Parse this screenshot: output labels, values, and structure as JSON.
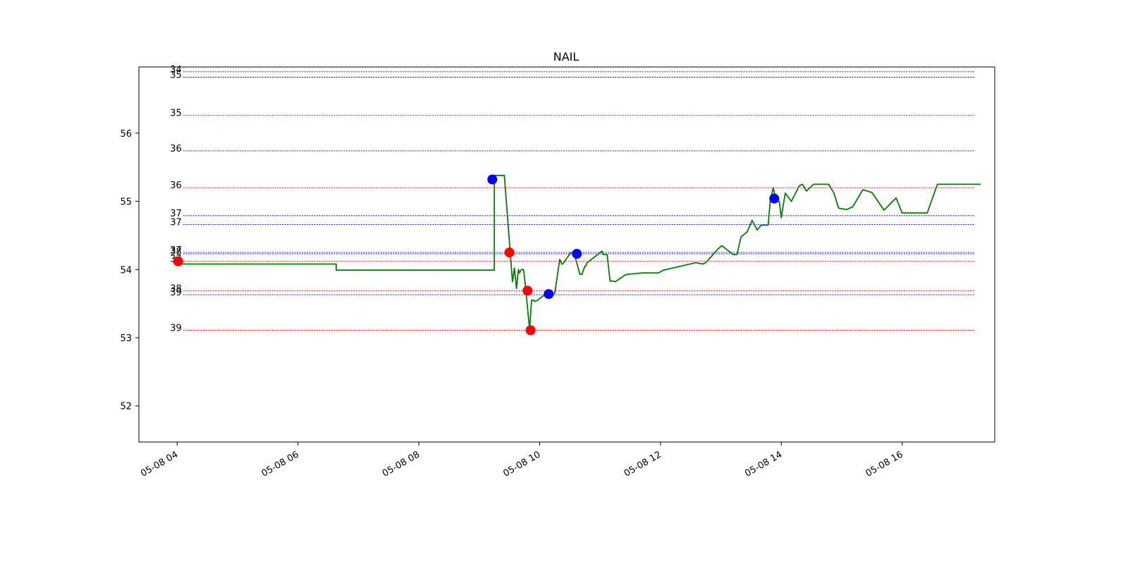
{
  "chart_data": {
    "type": "line",
    "title": "NAIL",
    "xlabel": "",
    "ylabel": "",
    "xlim": [
      "2024-05-08 03:22",
      "2024-05-08 17:32"
    ],
    "ylim": [
      51.47,
      56.97
    ],
    "grid": false,
    "x_ticks": [
      {
        "x": "2024-05-08 04:00",
        "label": "05-08 04"
      },
      {
        "x": "2024-05-08 06:00",
        "label": "05-08 06"
      },
      {
        "x": "2024-05-08 08:00",
        "label": "05-08 08"
      },
      {
        "x": "2024-05-08 10:00",
        "label": "05-08 10"
      },
      {
        "x": "2024-05-08 12:00",
        "label": "05-08 12"
      },
      {
        "x": "2024-05-08 14:00",
        "label": "05-08 14"
      },
      {
        "x": "2024-05-08 16:00",
        "label": "05-08 16"
      }
    ],
    "y_ticks": [
      52,
      53,
      54,
      55,
      56
    ],
    "series": [
      {
        "color": "#008000",
        "x": [
          "2024-05-08 04:00",
          "2024-05-08 06:38",
          "2024-05-08 06:38",
          "2024-05-08 09:15",
          "2024-05-08 09:15",
          "2024-05-08 09:25",
          "2024-05-08 09:33",
          "2024-05-08 09:35",
          "2024-05-08 09:37",
          "2024-05-08 09:39",
          "2024-05-08 09:40",
          "2024-05-08 09:42",
          "2024-05-08 09:44",
          "2024-05-08 09:46",
          "2024-05-08 09:50",
          "2024-05-08 09:52",
          "2024-05-08 09:54",
          "2024-05-08 09:55",
          "2024-05-08 09:58",
          "2024-05-08 10:05",
          "2024-05-08 10:07",
          "2024-05-08 10:15",
          "2024-05-08 10:20",
          "2024-05-08 10:22",
          "2024-05-08 10:23",
          "2024-05-08 10:31",
          "2024-05-08 10:34",
          "2024-05-08 10:40",
          "2024-05-08 10:42",
          "2024-05-08 10:45",
          "2024-05-08 10:46",
          "2024-05-08 10:47",
          "2024-05-08 10:56",
          "2024-05-08 11:02",
          "2024-05-08 11:03",
          "2024-05-08 11:07",
          "2024-05-08 11:10",
          "2024-05-08 11:13",
          "2024-05-08 11:15",
          "2024-05-08 11:25",
          "2024-05-08 11:27",
          "2024-05-08 11:42",
          "2024-05-08 11:47",
          "2024-05-08 11:58",
          "2024-05-08 12:03",
          "2024-05-08 12:35",
          "2024-05-08 12:42",
          "2024-05-08 12:45",
          "2024-05-08 12:57",
          "2024-05-08 13:01",
          "2024-05-08 13:12",
          "2024-05-08 13:16",
          "2024-05-08 13:20",
          "2024-05-08 13:26",
          "2024-05-08 13:31",
          "2024-05-08 13:36",
          "2024-05-08 13:40",
          "2024-05-08 13:47",
          "2024-05-08 13:49",
          "2024-05-08 13:52",
          "2024-05-08 13:55",
          "2024-05-08 13:58",
          "2024-05-08 14:00",
          "2024-05-08 14:02",
          "2024-05-08 14:04",
          "2024-05-08 14:10",
          "2024-05-08 14:18",
          "2024-05-08 14:21",
          "2024-05-08 14:25",
          "2024-05-08 14:32",
          "2024-05-08 14:38",
          "2024-05-08 14:43",
          "2024-05-08 14:47",
          "2024-05-08 14:52",
          "2024-05-08 14:57",
          "2024-05-08 15:05",
          "2024-05-08 15:11",
          "2024-05-08 15:21",
          "2024-05-08 15:30",
          "2024-05-08 15:42",
          "2024-05-08 15:54",
          "2024-05-08 16:00",
          "2024-05-08 16:08",
          "2024-05-08 16:13",
          "2024-05-08 16:25",
          "2024-05-08 16:35",
          "2024-05-08 16:45",
          "2024-05-08 16:52",
          "2024-05-08 17:05",
          "2024-05-08 17:18"
        ],
        "y": [
          54.08,
          54.08,
          53.99,
          53.99,
          55.38,
          55.38,
          53.82,
          54.02,
          53.72,
          54.0,
          53.95,
          54.0,
          54.0,
          53.75,
          53.12,
          53.55,
          53.55,
          53.53,
          53.55,
          53.63,
          53.63,
          53.65,
          54.15,
          54.08,
          54.08,
          54.25,
          54.25,
          53.93,
          53.93,
          54.05,
          54.05,
          54.1,
          54.2,
          54.27,
          54.22,
          54.22,
          53.83,
          53.83,
          53.82,
          53.92,
          53.93,
          53.95,
          53.95,
          53.95,
          53.99,
          54.1,
          54.08,
          54.1,
          54.3,
          54.35,
          54.22,
          54.22,
          54.48,
          54.55,
          54.72,
          54.58,
          54.65,
          54.65,
          55.0,
          55.2,
          55.0,
          55.0,
          54.76,
          54.95,
          55.12,
          55.0,
          55.23,
          55.25,
          55.15,
          55.25,
          55.25,
          55.25,
          55.25,
          55.13,
          54.9,
          54.88,
          54.92,
          55.17,
          55.13,
          54.87,
          55.05,
          54.83,
          54.83,
          54.83,
          54.83,
          55.25,
          55.25,
          55.25,
          55.25,
          55.25
        ]
      }
    ],
    "markers": [
      {
        "x": "2024-05-08 04:01",
        "y": 54.12,
        "color": "#ff0000"
      },
      {
        "x": "2024-05-08 09:13",
        "y": 55.32,
        "color": "#0000ff"
      },
      {
        "x": "2024-05-08 09:30",
        "y": 54.25,
        "color": "#ff0000"
      },
      {
        "x": "2024-05-08 09:48",
        "y": 53.69,
        "color": "#ff0000"
      },
      {
        "x": "2024-05-08 09:51",
        "y": 53.11,
        "color": "#ff0000"
      },
      {
        "x": "2024-05-08 10:09",
        "y": 53.64,
        "color": "#0000ff"
      },
      {
        "x": "2024-05-08 10:37",
        "y": 54.23,
        "color": "#0000ff"
      },
      {
        "x": "2024-05-08 13:53",
        "y": 55.04,
        "color": "#0000ff"
      }
    ],
    "hlines": [
      {
        "y": 56.9,
        "label": "34",
        "color": "#0000ff"
      },
      {
        "y": 56.82,
        "label": "35",
        "color": "#0000ff"
      },
      {
        "y": 56.26,
        "label": "35",
        "color": "#ff0000"
      },
      {
        "y": 55.74,
        "label": "36",
        "color": "#0000ff"
      },
      {
        "y": 55.2,
        "label": "36",
        "color": "#ff0000"
      },
      {
        "y": 54.79,
        "label": "37",
        "color": "#0000ff"
      },
      {
        "y": 54.66,
        "label": "37",
        "color": "#0000ff"
      },
      {
        "y": 54.25,
        "label": "37",
        "color": "#0000ff"
      },
      {
        "y": 54.23,
        "label": "38",
        "color": "#0000ff"
      },
      {
        "y": 54.12,
        "label": "37",
        "color": "#ff0000"
      },
      {
        "y": 53.69,
        "label": "38",
        "color": "#ff0000"
      },
      {
        "y": 53.63,
        "label": "39",
        "color": "#0000ff"
      },
      {
        "y": 53.11,
        "label": "39",
        "color": "#ff0000"
      }
    ],
    "hline_range": [
      "2024-05-08 04:06",
      "2024-05-08 17:12"
    ]
  }
}
